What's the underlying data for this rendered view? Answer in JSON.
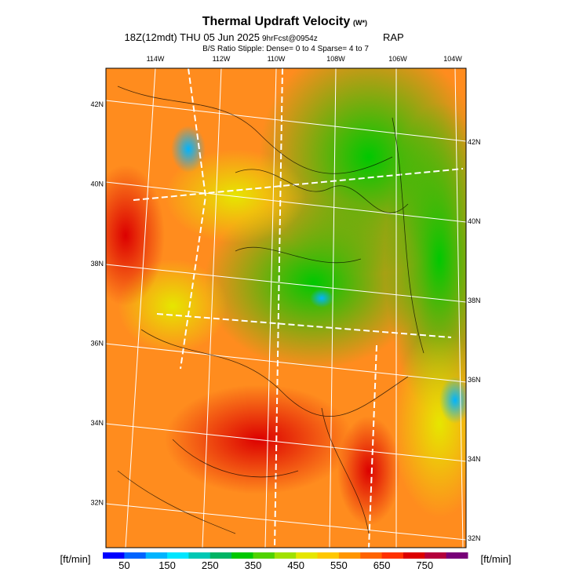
{
  "header": {
    "title": "Thermal Updraft Velocity",
    "title_unit": "(W*)",
    "subtitle": "18Z(12mdt) THU 05 Jun 2025",
    "forecast": "9hrFcst@0954z",
    "model": "RAP",
    "stipple": "B/S Ratio Stipple:  Dense= 0 to 4  Sparse= 4 to 7"
  },
  "map": {
    "lon_labels": [
      "114W",
      "112W",
      "110W",
      "108W",
      "106W",
      "104W"
    ],
    "lat_labels_left": [
      "42N",
      "40N",
      "38N",
      "36N",
      "34N",
      "32N"
    ],
    "lat_labels_right": [
      "42N",
      "40N",
      "38N",
      "36N",
      "34N",
      "32N"
    ]
  },
  "colorbar": {
    "unit_left": "[ft/min]",
    "unit_right": "[ft/min]",
    "labels": [
      50,
      150,
      250,
      350,
      450,
      550,
      650,
      750
    ],
    "colors": [
      "#0000ff",
      "#0064ff",
      "#00b4ff",
      "#00e6ff",
      "#00c8b4",
      "#00b464",
      "#00c800",
      "#50d200",
      "#a0e100",
      "#e6e600",
      "#ffc800",
      "#ff9600",
      "#ff6400",
      "#ff3200",
      "#dc0000",
      "#b4003c",
      "#780078"
    ]
  }
}
